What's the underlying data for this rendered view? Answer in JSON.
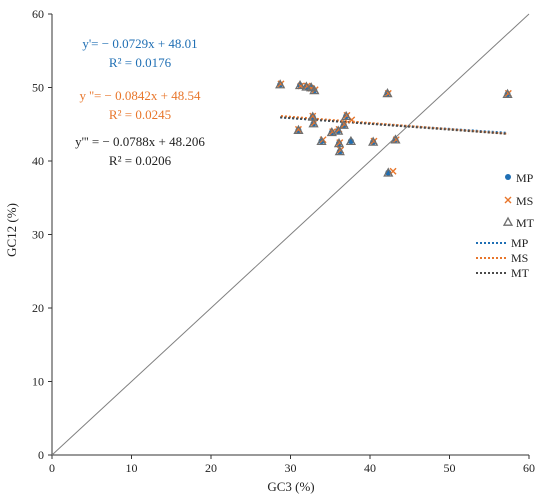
{
  "chart_data": {
    "type": "scatter",
    "title": "",
    "xlabel": "GC3 (%)",
    "ylabel": "GC12 (%)",
    "xlim": [
      0,
      60
    ],
    "ylim": [
      0,
      60
    ],
    "x_ticks": [
      "0",
      "10",
      "20",
      "30",
      "40",
      "50",
      "60"
    ],
    "y_ticks": [
      "0",
      "10",
      "20",
      "30",
      "40",
      "50",
      "60"
    ],
    "grid": false,
    "legend_position": "right",
    "diagonal": {
      "x": [
        0,
        60
      ],
      "y": [
        0,
        60
      ],
      "color": "#808080"
    },
    "series": [
      {
        "name": "MP",
        "marker": "dot",
        "color": "#1f6fb4",
        "points": [
          [
            28.7,
            50.4
          ],
          [
            31.0,
            44.2
          ],
          [
            31.2,
            50.3
          ],
          [
            32.0,
            50.1
          ],
          [
            32.6,
            50.0
          ],
          [
            32.8,
            46.0
          ],
          [
            32.9,
            45.1
          ],
          [
            33.0,
            49.6
          ],
          [
            33.9,
            42.7
          ],
          [
            35.2,
            43.9
          ],
          [
            36.0,
            44.1
          ],
          [
            36.1,
            42.4
          ],
          [
            36.2,
            41.3
          ],
          [
            36.7,
            44.9
          ],
          [
            37.0,
            46.1
          ],
          [
            37.6,
            42.7
          ],
          [
            40.4,
            42.6
          ],
          [
            42.2,
            49.2
          ],
          [
            42.3,
            38.4
          ],
          [
            43.2,
            42.9
          ],
          [
            57.3,
            49.1
          ]
        ],
        "trendline": {
          "equation": "y'= − 0.0729x + 48.01",
          "r2": "R² = 0.0176",
          "color": "#1f6fb4",
          "x": [
            28.7,
            57.3
          ],
          "y": [
            45.918,
            43.833
          ]
        }
      },
      {
        "name": "MS",
        "marker": "x",
        "color": "#e8762b",
        "points": [
          [
            28.8,
            50.5
          ],
          [
            31.0,
            44.3
          ],
          [
            31.3,
            50.2
          ],
          [
            32.1,
            50.2
          ],
          [
            32.6,
            49.9
          ],
          [
            32.8,
            46.1
          ],
          [
            33.0,
            45.2
          ],
          [
            33.1,
            49.7
          ],
          [
            34.1,
            42.9
          ],
          [
            35.3,
            44.0
          ],
          [
            36.1,
            44.3
          ],
          [
            36.2,
            42.5
          ],
          [
            36.3,
            41.5
          ],
          [
            36.8,
            45.0
          ],
          [
            37.1,
            46.2
          ],
          [
            37.7,
            45.6
          ],
          [
            40.5,
            42.7
          ],
          [
            42.3,
            49.2
          ],
          [
            42.9,
            38.6
          ],
          [
            43.3,
            42.9
          ],
          [
            57.4,
            49.2
          ]
        ],
        "trendline": {
          "equation": "y ''= − 0.0842x + 48.54",
          "r2": "R² = 0.0245",
          "color": "#e8762b",
          "x": [
            28.8,
            57.4
          ],
          "y": [
            46.115,
            43.707
          ]
        }
      },
      {
        "name": "MT",
        "marker": "triangle",
        "color": "#6e6e6e",
        "points": [
          [
            28.7,
            50.4
          ],
          [
            31.0,
            44.2
          ],
          [
            31.2,
            50.3
          ],
          [
            32.0,
            50.1
          ],
          [
            32.6,
            50.0
          ],
          [
            32.8,
            46.0
          ],
          [
            32.9,
            45.1
          ],
          [
            33.0,
            49.6
          ],
          [
            33.9,
            42.7
          ],
          [
            35.2,
            43.9
          ],
          [
            36.0,
            44.1
          ],
          [
            36.1,
            42.4
          ],
          [
            36.2,
            41.3
          ],
          [
            36.7,
            44.9
          ],
          [
            37.0,
            46.1
          ],
          [
            37.6,
            42.7
          ],
          [
            40.4,
            42.6
          ],
          [
            42.2,
            49.2
          ],
          [
            42.3,
            38.4
          ],
          [
            43.2,
            42.9
          ],
          [
            57.3,
            49.1
          ]
        ],
        "trendline": {
          "equation": "y''' = − 0.0788x + 48.206",
          "r2": "R² = 0.0206",
          "color": "#4a4a4a",
          "x": [
            28.7,
            57.3
          ],
          "y": [
            45.944,
            43.691
          ]
        }
      }
    ],
    "legend": {
      "marker_entries": [
        "MP",
        "MS",
        "MT"
      ],
      "line_entries": [
        "MP",
        "MS",
        "MT"
      ]
    }
  }
}
